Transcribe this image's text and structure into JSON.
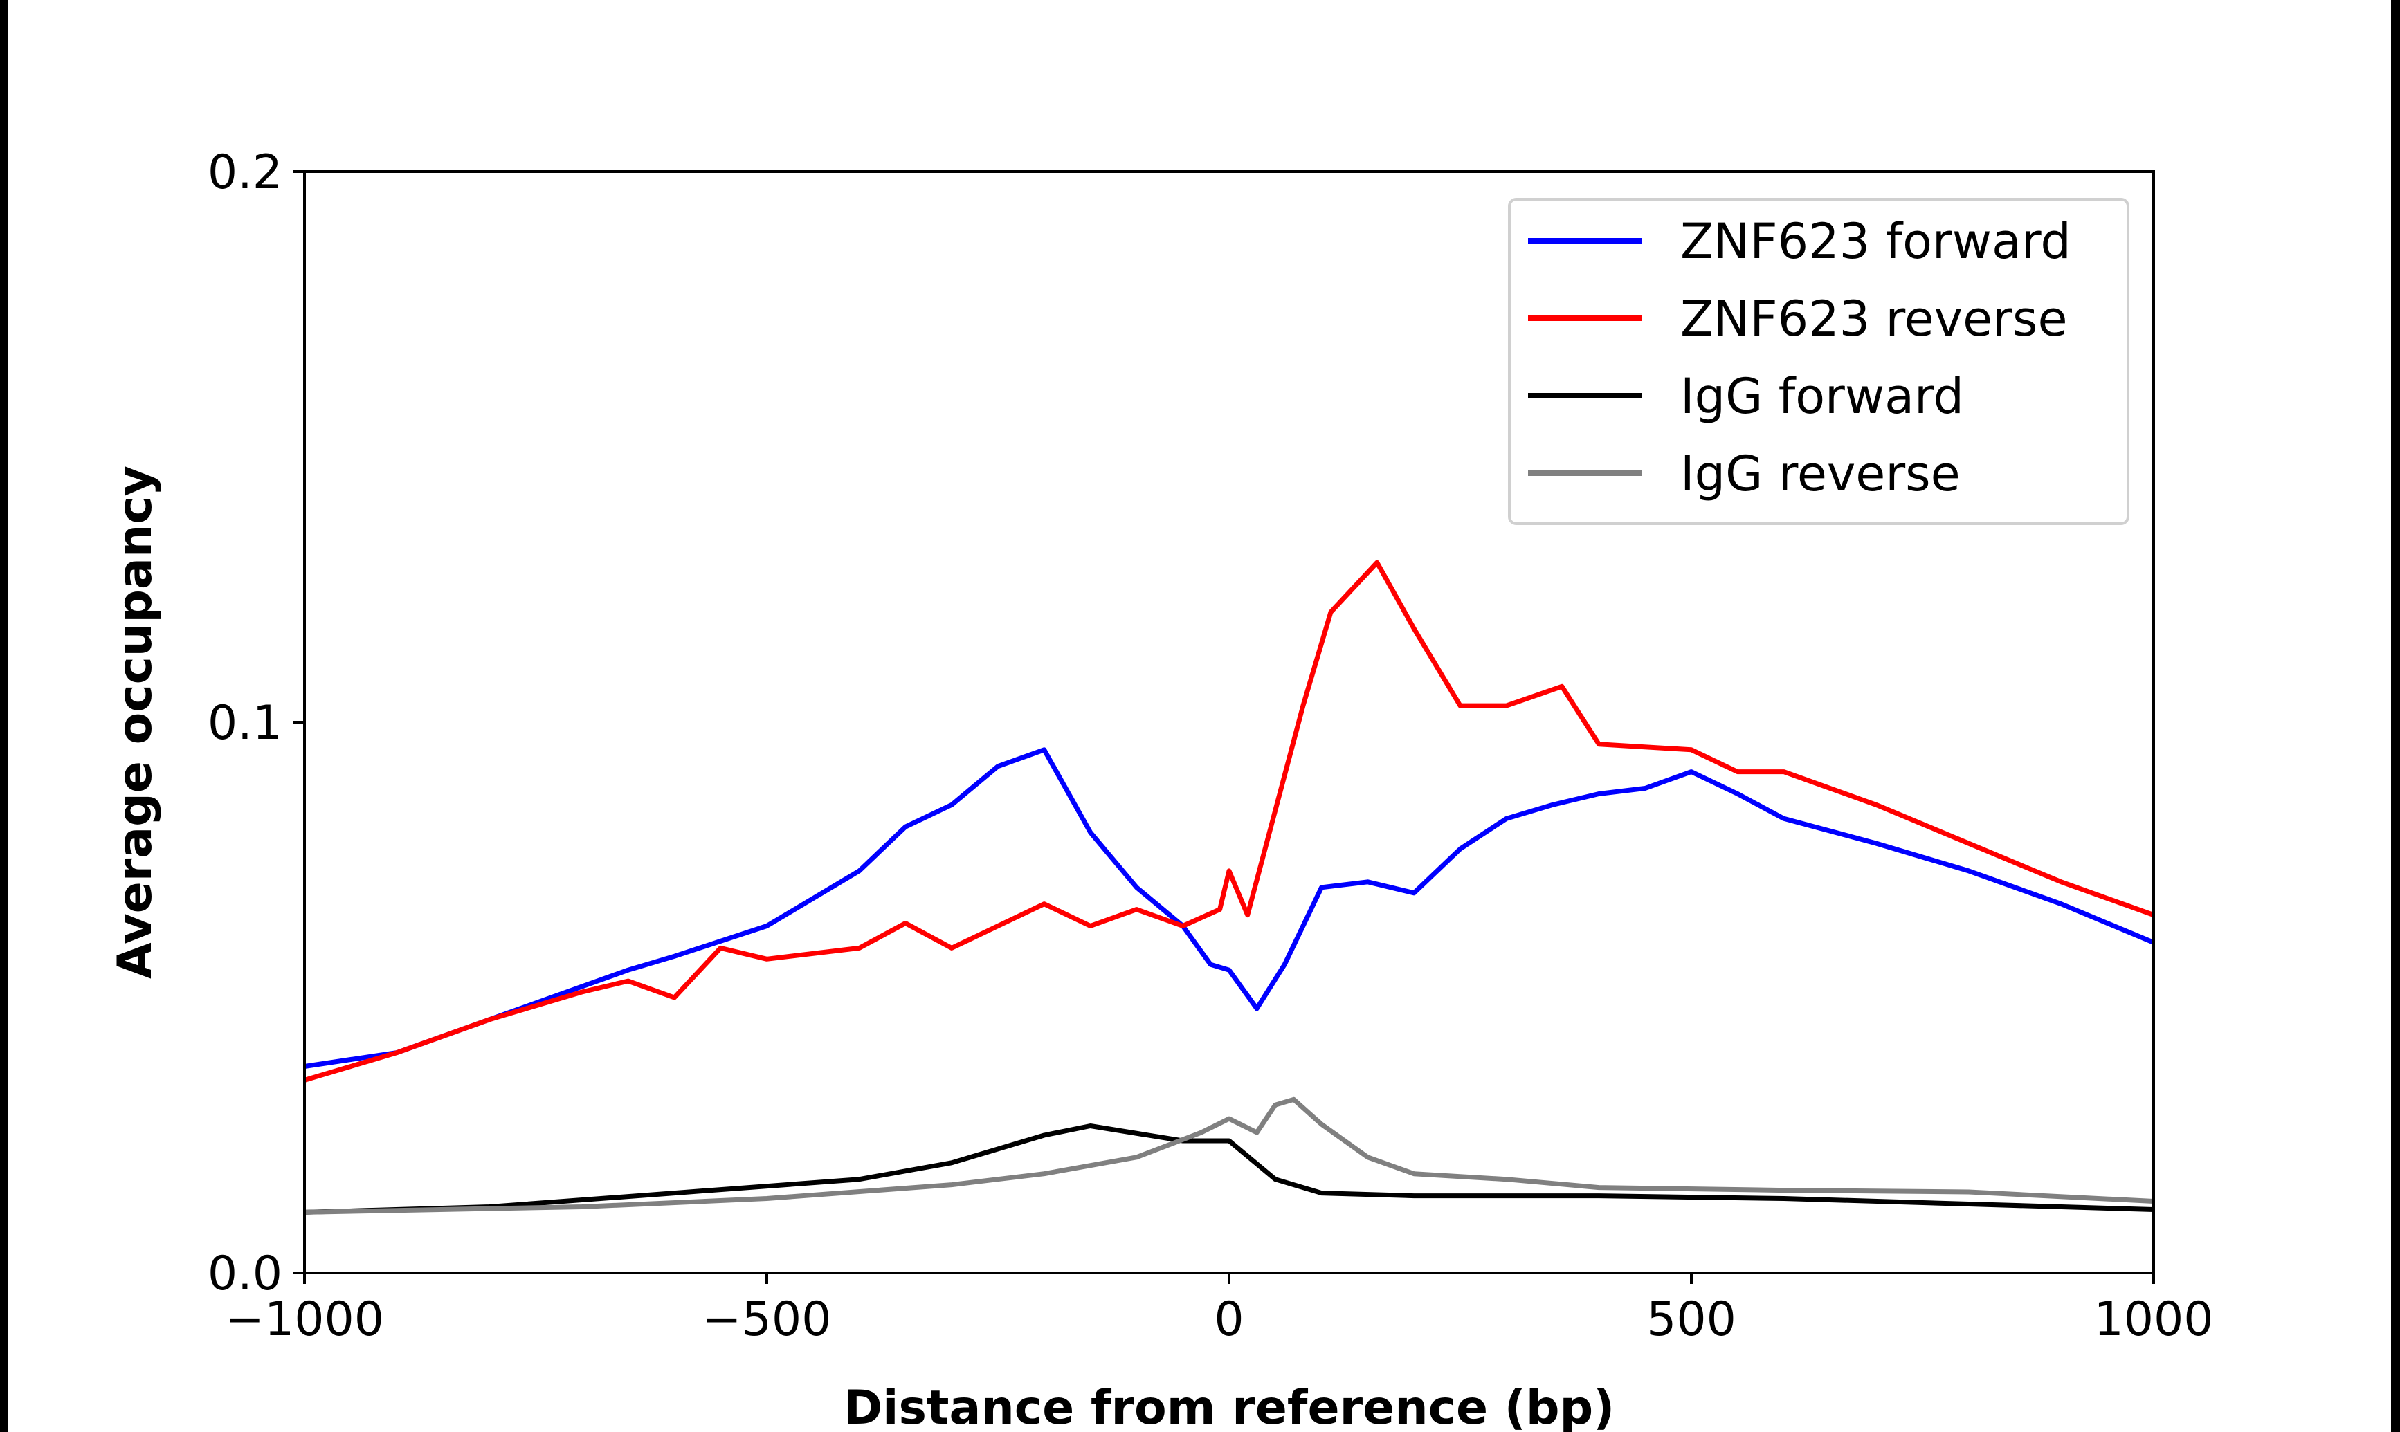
{
  "chart_data": {
    "type": "line",
    "title": "",
    "xlabel": "Distance from reference (bp)",
    "ylabel": "Average occupancy",
    "xlim": [
      -1000,
      1000
    ],
    "ylim": [
      0.0,
      0.2
    ],
    "xticks": [
      -1000,
      -500,
      0,
      500,
      1000
    ],
    "xtick_labels": [
      "−1000",
      "−500",
      "0",
      "500",
      "1000"
    ],
    "yticks": [
      0.0,
      0.1,
      0.2
    ],
    "ytick_labels": [
      "0.0",
      "0.1",
      "0.2"
    ],
    "grid": false,
    "legend_position": "top-right",
    "series": [
      {
        "name": "ZNF623 forward",
        "color": "#0000ff",
        "x": [
          -1000,
          -900,
          -800,
          -700,
          -650,
          -600,
          -500,
          -400,
          -350,
          -300,
          -250,
          -200,
          -150,
          -100,
          -50,
          -20,
          0,
          30,
          60,
          100,
          150,
          200,
          250,
          300,
          350,
          400,
          450,
          500,
          550,
          600,
          700,
          800,
          900,
          1000
        ],
        "y": [
          0.0375,
          0.04,
          0.046,
          0.052,
          0.055,
          0.0575,
          0.063,
          0.073,
          0.081,
          0.085,
          0.092,
          0.095,
          0.08,
          0.07,
          0.063,
          0.056,
          0.055,
          0.048,
          0.056,
          0.07,
          0.071,
          0.069,
          0.077,
          0.0825,
          0.085,
          0.087,
          0.088,
          0.091,
          0.087,
          0.0825,
          0.078,
          0.073,
          0.067,
          0.06
        ]
      },
      {
        "name": "ZNF623 reverse",
        "color": "#ff0000",
        "x": [
          -1000,
          -900,
          -800,
          -700,
          -650,
          -600,
          -550,
          -500,
          -400,
          -350,
          -300,
          -250,
          -200,
          -150,
          -100,
          -50,
          -10,
          0,
          20,
          50,
          80,
          110,
          160,
          200,
          250,
          300,
          360,
          400,
          500,
          550,
          600,
          700,
          800,
          900,
          1000
        ],
        "y": [
          0.035,
          0.04,
          0.046,
          0.051,
          0.053,
          0.05,
          0.059,
          0.057,
          0.059,
          0.0635,
          0.059,
          0.063,
          0.067,
          0.063,
          0.066,
          0.063,
          0.066,
          0.073,
          0.065,
          0.084,
          0.103,
          0.12,
          0.129,
          0.117,
          0.103,
          0.103,
          0.1065,
          0.096,
          0.095,
          0.091,
          0.091,
          0.085,
          0.078,
          0.071,
          0.065
        ]
      },
      {
        "name": "IgG forward",
        "color": "#000000",
        "x": [
          -1000,
          -800,
          -600,
          -400,
          -300,
          -200,
          -150,
          -50,
          0,
          50,
          100,
          200,
          400,
          600,
          800,
          1000
        ],
        "y": [
          0.011,
          0.012,
          0.0145,
          0.017,
          0.02,
          0.025,
          0.0267,
          0.024,
          0.024,
          0.017,
          0.0145,
          0.014,
          0.014,
          0.0135,
          0.0125,
          0.0115
        ]
      },
      {
        "name": "IgG reverse",
        "color": "#808080",
        "x": [
          -1000,
          -700,
          -500,
          -300,
          -200,
          -100,
          -30,
          0,
          30,
          50,
          70,
          100,
          150,
          200,
          300,
          400,
          600,
          800,
          1000
        ],
        "y": [
          0.011,
          0.012,
          0.0135,
          0.016,
          0.018,
          0.021,
          0.0255,
          0.028,
          0.0255,
          0.0305,
          0.0315,
          0.027,
          0.021,
          0.018,
          0.017,
          0.0155,
          0.015,
          0.0147,
          0.013
        ]
      }
    ]
  }
}
